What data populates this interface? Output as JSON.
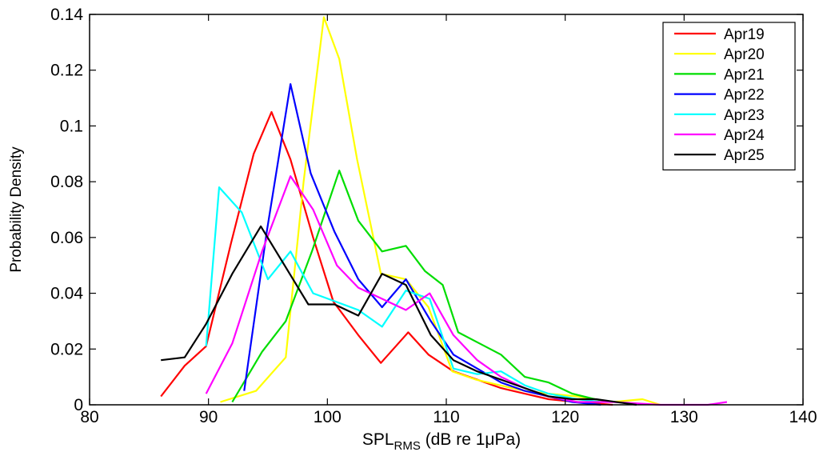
{
  "chart_data": {
    "type": "line",
    "title": "",
    "xlabel": "SPL",
    "xlabel_sub": "RMS",
    "xlabel_suffix": " (dB re 1μPa)",
    "ylabel": "Probability Density",
    "xlim": [
      80,
      140
    ],
    "ylim": [
      0,
      0.14
    ],
    "xticks": [
      80,
      90,
      100,
      110,
      120,
      130,
      140
    ],
    "yticks": [
      0,
      0.02,
      0.04,
      0.06,
      0.08,
      0.1,
      0.12,
      0.14
    ],
    "ytick_labels": [
      "0",
      "0.02",
      "0.04",
      "0.06",
      "0.08",
      "0.1",
      "0.12",
      "0.14"
    ],
    "grid": false,
    "legend_position": "top-right",
    "series": [
      {
        "name": "Apr19",
        "color": "#ff0000",
        "x": [
          86,
          88,
          89.8,
          91.9,
          93.8,
          95.3,
          96.9,
          98.8,
          100.5,
          102.6,
          104.5,
          106.8,
          108.5,
          110.6,
          112.6,
          114.6,
          116.6,
          118.6,
          121,
          124
        ],
        "y": [
          0.003,
          0.014,
          0.021,
          0.058,
          0.09,
          0.105,
          0.088,
          0.06,
          0.037,
          0.025,
          0.015,
          0.026,
          0.018,
          0.012,
          0.009,
          0.006,
          0.004,
          0.002,
          0.001,
          0
        ]
      },
      {
        "name": "Apr20",
        "color": "#ffff00",
        "x": [
          91,
          94,
          96.5,
          98,
          99.7,
          101,
          102.5,
          104.5,
          106.6,
          108.5,
          110.5,
          112.5,
          114.5,
          116.6,
          118.6,
          121,
          124,
          126.5,
          128
        ],
        "y": [
          0.001,
          0.005,
          0.017,
          0.08,
          0.139,
          0.124,
          0.088,
          0.047,
          0.045,
          0.035,
          0.012,
          0.009,
          0.007,
          0.005,
          0.004,
          0.003,
          0.001,
          0.002,
          0
        ]
      },
      {
        "name": "Apr21",
        "color": "#00dd00",
        "x": [
          92,
          94.5,
          96.5,
          98.7,
          101,
          102.6,
          104.6,
          106.6,
          108.2,
          109.7,
          111,
          112.8,
          114.6,
          116.6,
          118.6,
          120.6,
          122.5,
          124
        ],
        "y": [
          0.001,
          0.019,
          0.03,
          0.055,
          0.084,
          0.066,
          0.055,
          0.057,
          0.048,
          0.043,
          0.026,
          0.022,
          0.018,
          0.01,
          0.008,
          0.004,
          0.002,
          0.001
        ]
      },
      {
        "name": "Apr22",
        "color": "#0000ff",
        "x": [
          93,
          94.9,
          96.9,
          98.6,
          100.6,
          102.6,
          104.6,
          106.6,
          108.7,
          110.6,
          112.6,
          114.6,
          116.6,
          118.6,
          120.6,
          123
        ],
        "y": [
          0.005,
          0.062,
          0.115,
          0.083,
          0.062,
          0.045,
          0.035,
          0.045,
          0.03,
          0.018,
          0.013,
          0.008,
          0.005,
          0.003,
          0.001,
          0
        ]
      },
      {
        "name": "Apr23",
        "color": "#00ffff",
        "x": [
          89.8,
          90.9,
          92.8,
          95,
          96.9,
          98.8,
          100.7,
          102.6,
          104.6,
          106.6,
          108.6,
          110.6,
          112.6,
          114.6,
          116.6,
          118.6,
          121,
          123
        ],
        "y": [
          0.021,
          0.078,
          0.069,
          0.045,
          0.055,
          0.04,
          0.037,
          0.034,
          0.028,
          0.041,
          0.038,
          0.013,
          0.011,
          0.012,
          0.007,
          0.004,
          0.002,
          0.001
        ]
      },
      {
        "name": "Apr24",
        "color": "#ff00ff",
        "x": [
          89.8,
          92,
          94.5,
          96.9,
          98.8,
          100.8,
          102.6,
          104.6,
          106.6,
          108.6,
          110.6,
          112.6,
          114.6,
          116.6,
          118.6,
          121,
          124,
          128,
          132,
          133.6
        ],
        "y": [
          0.004,
          0.022,
          0.055,
          0.082,
          0.07,
          0.05,
          0.042,
          0.038,
          0.034,
          0.04,
          0.025,
          0.016,
          0.01,
          0.006,
          0.003,
          0.001,
          0.001,
          0,
          0,
          0.001
        ]
      },
      {
        "name": "Apr25",
        "color": "#000000",
        "x": [
          86,
          88,
          89.8,
          92,
          94.4,
          96.4,
          98.4,
          100.6,
          102.6,
          104.6,
          106.6,
          108.7,
          110.6,
          112.6,
          114.6,
          116.6,
          118.6,
          120.6,
          122.6,
          126
        ],
        "y": [
          0.016,
          0.017,
          0.029,
          0.047,
          0.064,
          0.05,
          0.036,
          0.036,
          0.032,
          0.047,
          0.043,
          0.025,
          0.016,
          0.012,
          0.009,
          0.006,
          0.003,
          0.002,
          0.002,
          0
        ]
      }
    ]
  }
}
